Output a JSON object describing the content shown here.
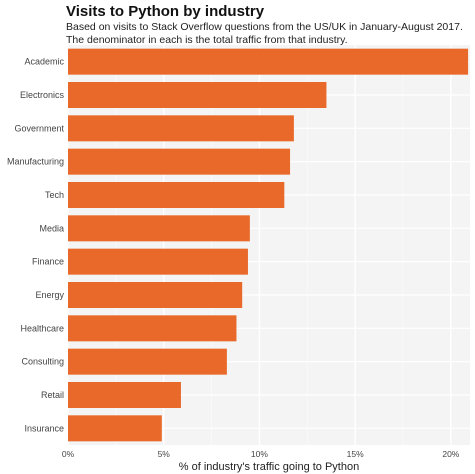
{
  "chart_data": {
    "type": "bar",
    "orientation": "horizontal",
    "title": "Visits to Python by industry",
    "subtitle": [
      "Based on visits to Stack Overflow questions from the US/UK in January-August 2017.",
      "The denominator in each is the total traffic from that industry."
    ],
    "xlabel": "% of industry's traffic going to Python",
    "ylabel": "",
    "categories": [
      "Academic",
      "Electronics",
      "Government",
      "Manufacturing",
      "Tech",
      "Media",
      "Finance",
      "Energy",
      "Healthcare",
      "Consulting",
      "Retail",
      "Insurance"
    ],
    "values": [
      20.9,
      13.5,
      11.8,
      11.6,
      11.3,
      9.5,
      9.4,
      9.1,
      8.8,
      8.3,
      5.9,
      4.9
    ],
    "unit": "%",
    "xlim": [
      0,
      21
    ],
    "xticks": [
      0,
      5,
      10,
      15,
      20
    ],
    "xtick_labels": [
      "0%",
      "5%",
      "10%",
      "15%",
      "20%"
    ],
    "bar_color": "#E8692A",
    "grid": true,
    "legend": "none"
  }
}
